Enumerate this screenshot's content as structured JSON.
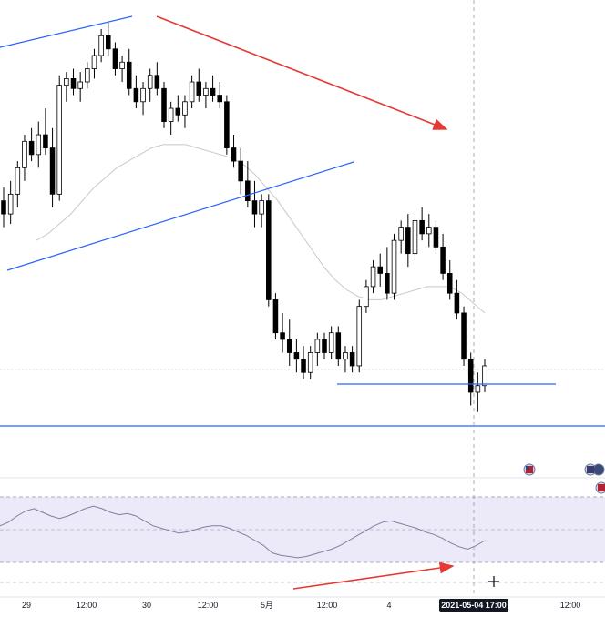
{
  "chart_data": [
    {
      "type": "candlestick",
      "title": "",
      "xlabel": "",
      "ylabel": "",
      "x_ticks": [
        "29",
        "12:00",
        "30",
        "12:00",
        "5月",
        "12:00",
        "4",
        "12:00",
        "12:00"
      ],
      "crosshair_label": "2021-05-04  17:00",
      "ylim": [
        0,
        100
      ],
      "candles": [
        {
          "o": 60,
          "h": 64,
          "l": 52,
          "c": 56
        },
        {
          "o": 56,
          "h": 66,
          "l": 53,
          "c": 62
        },
        {
          "o": 62,
          "h": 72,
          "l": 58,
          "c": 70
        },
        {
          "o": 70,
          "h": 80,
          "l": 66,
          "c": 78
        },
        {
          "o": 78,
          "h": 82,
          "l": 72,
          "c": 74
        },
        {
          "o": 74,
          "h": 84,
          "l": 70,
          "c": 80
        },
        {
          "o": 80,
          "h": 88,
          "l": 74,
          "c": 76
        },
        {
          "o": 76,
          "h": 82,
          "l": 58,
          "c": 62
        },
        {
          "o": 62,
          "h": 98,
          "l": 60,
          "c": 95
        },
        {
          "o": 95,
          "h": 99,
          "l": 90,
          "c": 97
        },
        {
          "o": 97,
          "h": 100,
          "l": 92,
          "c": 94
        },
        {
          "o": 94,
          "h": 99,
          "l": 90,
          "c": 96
        },
        {
          "o": 96,
          "h": 102,
          "l": 94,
          "c": 100
        },
        {
          "o": 100,
          "h": 106,
          "l": 97,
          "c": 104
        },
        {
          "o": 104,
          "h": 112,
          "l": 102,
          "c": 110
        },
        {
          "o": 110,
          "h": 114,
          "l": 104,
          "c": 106
        },
        {
          "o": 106,
          "h": 108,
          "l": 98,
          "c": 100
        },
        {
          "o": 100,
          "h": 104,
          "l": 96,
          "c": 102
        },
        {
          "o": 102,
          "h": 106,
          "l": 92,
          "c": 94
        },
        {
          "o": 94,
          "h": 98,
          "l": 88,
          "c": 90
        },
        {
          "o": 90,
          "h": 96,
          "l": 86,
          "c": 94
        },
        {
          "o": 94,
          "h": 100,
          "l": 90,
          "c": 98
        },
        {
          "o": 98,
          "h": 102,
          "l": 92,
          "c": 94
        },
        {
          "o": 94,
          "h": 96,
          "l": 82,
          "c": 84
        },
        {
          "o": 84,
          "h": 90,
          "l": 80,
          "c": 88
        },
        {
          "o": 88,
          "h": 92,
          "l": 84,
          "c": 86
        },
        {
          "o": 86,
          "h": 92,
          "l": 82,
          "c": 90
        },
        {
          "o": 90,
          "h": 98,
          "l": 88,
          "c": 96
        },
        {
          "o": 96,
          "h": 100,
          "l": 90,
          "c": 92
        },
        {
          "o": 92,
          "h": 96,
          "l": 88,
          "c": 94
        },
        {
          "o": 94,
          "h": 98,
          "l": 90,
          "c": 92
        },
        {
          "o": 92,
          "h": 96,
          "l": 88,
          "c": 90
        },
        {
          "o": 90,
          "h": 92,
          "l": 74,
          "c": 76
        },
        {
          "o": 76,
          "h": 80,
          "l": 70,
          "c": 72
        },
        {
          "o": 72,
          "h": 76,
          "l": 62,
          "c": 66
        },
        {
          "o": 66,
          "h": 72,
          "l": 58,
          "c": 60
        },
        {
          "o": 60,
          "h": 66,
          "l": 52,
          "c": 56
        },
        {
          "o": 56,
          "h": 62,
          "l": 52,
          "c": 60
        },
        {
          "o": 60,
          "h": 62,
          "l": 28,
          "c": 30
        },
        {
          "o": 30,
          "h": 32,
          "l": 18,
          "c": 20
        },
        {
          "o": 20,
          "h": 26,
          "l": 14,
          "c": 18
        },
        {
          "o": 18,
          "h": 24,
          "l": 10,
          "c": 14
        },
        {
          "o": 14,
          "h": 18,
          "l": 8,
          "c": 12
        },
        {
          "o": 12,
          "h": 16,
          "l": 6,
          "c": 8
        },
        {
          "o": 8,
          "h": 16,
          "l": 6,
          "c": 14
        },
        {
          "o": 14,
          "h": 20,
          "l": 10,
          "c": 18
        },
        {
          "o": 18,
          "h": 20,
          "l": 12,
          "c": 14
        },
        {
          "o": 14,
          "h": 22,
          "l": 12,
          "c": 20
        },
        {
          "o": 20,
          "h": 22,
          "l": 10,
          "c": 12
        },
        {
          "o": 12,
          "h": 16,
          "l": 8,
          "c": 14
        },
        {
          "o": 14,
          "h": 16,
          "l": 8,
          "c": 10
        },
        {
          "o": 10,
          "h": 30,
          "l": 8,
          "c": 28
        },
        {
          "o": 28,
          "h": 36,
          "l": 26,
          "c": 34
        },
        {
          "o": 34,
          "h": 42,
          "l": 32,
          "c": 40
        },
        {
          "o": 40,
          "h": 44,
          "l": 34,
          "c": 38
        },
        {
          "o": 38,
          "h": 46,
          "l": 30,
          "c": 32
        },
        {
          "o": 32,
          "h": 50,
          "l": 30,
          "c": 48
        },
        {
          "o": 48,
          "h": 54,
          "l": 44,
          "c": 52
        },
        {
          "o": 52,
          "h": 56,
          "l": 40,
          "c": 44
        },
        {
          "o": 44,
          "h": 56,
          "l": 42,
          "c": 54
        },
        {
          "o": 54,
          "h": 58,
          "l": 48,
          "c": 50
        },
        {
          "o": 50,
          "h": 56,
          "l": 46,
          "c": 52
        },
        {
          "o": 52,
          "h": 54,
          "l": 44,
          "c": 46
        },
        {
          "o": 46,
          "h": 50,
          "l": 36,
          "c": 38
        },
        {
          "o": 38,
          "h": 42,
          "l": 30,
          "c": 32
        },
        {
          "o": 32,
          "h": 36,
          "l": 24,
          "c": 26
        },
        {
          "o": 26,
          "h": 28,
          "l": 10,
          "c": 12
        },
        {
          "o": 12,
          "h": 14,
          "l": -2,
          "c": 2
        },
        {
          "o": 2,
          "h": 8,
          "l": -4,
          "c": 4
        },
        {
          "o": 4,
          "h": 12,
          "l": 2,
          "c": 10
        }
      ],
      "moving_average": [
        48,
        50,
        53,
        56,
        60,
        64,
        67,
        70,
        72,
        74,
        76,
        77,
        77,
        77,
        76,
        75,
        74,
        73,
        71,
        68,
        64,
        60,
        55,
        50,
        45,
        40,
        36,
        33,
        31,
        30,
        30,
        31,
        32,
        33,
        34,
        34,
        34,
        32,
        29,
        26
      ],
      "rsi": [
        52,
        55,
        60,
        64,
        66,
        63,
        60,
        58,
        60,
        63,
        66,
        68,
        66,
        63,
        61,
        62,
        60,
        56,
        52,
        50,
        48,
        46,
        47,
        49,
        51,
        52,
        52,
        50,
        47,
        44,
        40,
        36,
        30,
        28,
        27,
        26,
        27,
        29,
        31,
        33,
        36,
        40,
        44,
        48,
        52,
        55,
        56,
        54,
        52,
        50,
        47,
        45,
        42,
        38,
        35,
        33,
        36,
        40
      ]
    }
  ],
  "colors": {
    "up_candle": "#ffffff",
    "down_candle": "#000000",
    "trendline": "#2962ff",
    "arrow": "#e53935",
    "ma_line": "#c8c8c8",
    "rsi_line": "#8080a0",
    "rsi_band": "#ece9f9",
    "crosshair_bg": "#131722"
  },
  "icons": {
    "event_flag": "us-flag-icon",
    "cursor": "crosshair-cursor-icon"
  }
}
